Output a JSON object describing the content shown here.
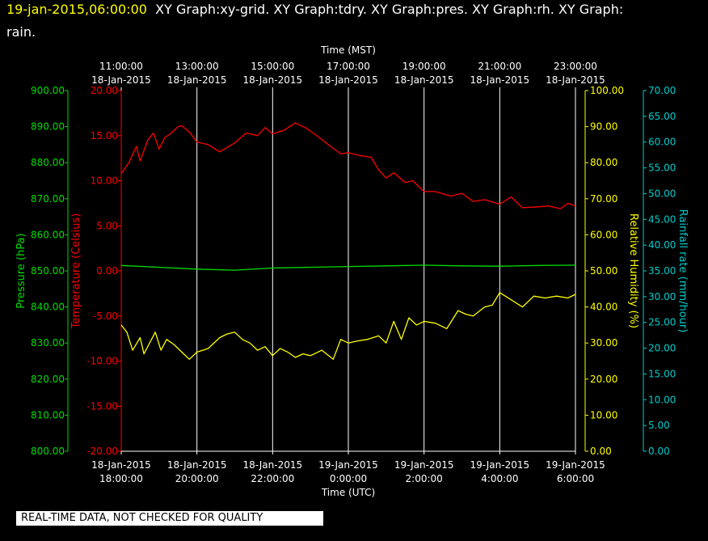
{
  "header": {
    "date": "19-jan-2015,06:00:00",
    "title_line1": "XY Graph:xy-grid.  XY Graph:tdry.  XY Graph:pres.  XY Graph:rh.  XY Graph:",
    "title_line2": "rain."
  },
  "disclaimer": "REAL-TIME DATA, NOT CHECKED FOR QUALITY",
  "colors": {
    "temperature": "#ff0000",
    "pressure": "#00dd00",
    "humidity": "#ffff00",
    "rain": "#00cccc",
    "grid": "#ffffff",
    "background": "#000000"
  },
  "chart_data": {
    "type": "line",
    "x_top_label": "Time (MST)",
    "x_bottom_label": "Time (UTC)",
    "x_top_ticks": [
      [
        "11:00:00",
        "18-Jan-2015"
      ],
      [
        "13:00:00",
        "18-Jan-2015"
      ],
      [
        "15:00:00",
        "18-Jan-2015"
      ],
      [
        "17:00:00",
        "18-Jan-2015"
      ],
      [
        "19:00:00",
        "18-Jan-2015"
      ],
      [
        "21:00:00",
        "18-Jan-2015"
      ],
      [
        "23:00:00",
        "18-Jan-2015"
      ]
    ],
    "x_bottom_ticks": [
      [
        "18-Jan-2015",
        "18:00:00"
      ],
      [
        "18-Jan-2015",
        "20:00:00"
      ],
      [
        "18-Jan-2015",
        "22:00:00"
      ],
      [
        "19-Jan-2015",
        "0:00:00"
      ],
      [
        "19-Jan-2015",
        "2:00:00"
      ],
      [
        "19-Jan-2015",
        "4:00:00"
      ],
      [
        "19-Jan-2015",
        "6:00:00"
      ]
    ],
    "x_range_utc_hours": [
      18,
      30
    ],
    "axes": {
      "pressure": {
        "label": "Pressure (hPa)",
        "range": [
          800,
          900
        ],
        "ticks": [
          "900.00",
          "890.00",
          "880.00",
          "870.00",
          "860.00",
          "850.00",
          "840.00",
          "830.00",
          "820.00",
          "810.00",
          "800.00"
        ]
      },
      "temperature": {
        "label": "Temperature (Celsius)",
        "range": [
          -20,
          20
        ],
        "ticks": [
          "20.00",
          "15.00",
          "10.00",
          "5.00",
          "0.00",
          "-5.00",
          "-10.00",
          "-15.00",
          "-20.00"
        ]
      },
      "humidity": {
        "label": "Relative Humidity (%)",
        "range": [
          0,
          100
        ],
        "ticks": [
          "100.00",
          "90.00",
          "80.00",
          "70.00",
          "60.00",
          "50.00",
          "40.00",
          "30.00",
          "20.00",
          "10.00",
          "0.00"
        ]
      },
      "rain": {
        "label": "Rainfall rate (mm/hour)",
        "range": [
          0,
          70
        ],
        "ticks": [
          "70.00",
          "65.00",
          "60.00",
          "55.00",
          "50.00",
          "45.00",
          "40.00",
          "35.00",
          "30.00",
          "25.00",
          "20.00",
          "15.00",
          "10.00",
          "5.00",
          "0.00"
        ]
      }
    },
    "series": [
      {
        "name": "tdry",
        "axis": "temperature",
        "x": [
          18.0,
          18.2,
          18.4,
          18.5,
          18.7,
          18.85,
          19.0,
          19.15,
          19.3,
          19.5,
          19.6,
          19.8,
          20.0,
          20.3,
          20.6,
          21.0,
          21.3,
          21.6,
          21.8,
          22.0,
          22.3,
          22.6,
          22.9,
          23.2,
          23.5,
          23.8,
          24.0,
          24.3,
          24.6,
          24.8,
          25.0,
          25.2,
          25.5,
          25.7,
          26.0,
          26.3,
          26.7,
          27.0,
          27.3,
          27.6,
          28.0,
          28.3,
          28.6,
          29.0,
          29.3,
          29.6,
          29.8,
          30.0
        ],
        "y": [
          10.8,
          12.0,
          13.8,
          12.2,
          14.5,
          15.3,
          13.5,
          14.8,
          15.2,
          16.0,
          16.1,
          15.4,
          14.3,
          14.0,
          13.2,
          14.2,
          15.3,
          15.0,
          15.9,
          15.2,
          15.6,
          16.4,
          15.8,
          14.9,
          13.9,
          13.0,
          13.1,
          12.8,
          12.6,
          11.2,
          10.3,
          10.9,
          9.8,
          10.0,
          8.8,
          8.8,
          8.3,
          8.6,
          7.7,
          7.9,
          7.4,
          8.2,
          7.0,
          7.1,
          7.2,
          6.9,
          7.5,
          7.2
        ]
      },
      {
        "name": "pres",
        "axis": "pressure",
        "x": [
          18.0,
          19.0,
          20.0,
          21.0,
          22.0,
          23.0,
          24.0,
          25.0,
          26.0,
          27.0,
          28.0,
          29.0,
          30.0
        ],
        "y": [
          851.5,
          851.0,
          850.5,
          850.2,
          850.8,
          851.0,
          851.2,
          851.4,
          851.6,
          851.4,
          851.3,
          851.5,
          851.6
        ]
      },
      {
        "name": "rh",
        "axis": "humidity",
        "x": [
          18.0,
          18.15,
          18.3,
          18.5,
          18.6,
          18.75,
          18.9,
          19.05,
          19.2,
          19.4,
          19.6,
          19.8,
          20.0,
          20.3,
          20.6,
          20.8,
          21.0,
          21.2,
          21.4,
          21.6,
          21.8,
          22.0,
          22.2,
          22.4,
          22.6,
          22.8,
          23.0,
          23.3,
          23.6,
          23.8,
          24.0,
          24.2,
          24.5,
          24.8,
          25.0,
          25.2,
          25.4,
          25.6,
          25.8,
          26.0,
          26.3,
          26.6,
          26.9,
          27.1,
          27.3,
          27.6,
          27.8,
          28.0,
          28.3,
          28.6,
          28.9,
          29.2,
          29.5,
          29.8,
          30.0
        ],
        "y": [
          35.0,
          33.0,
          28.0,
          31.5,
          27.0,
          30.0,
          33.0,
          28.0,
          31.0,
          29.5,
          27.5,
          25.5,
          27.5,
          28.5,
          31.5,
          32.5,
          33.0,
          31.0,
          30.0,
          28.0,
          29.0,
          26.5,
          28.5,
          27.5,
          26.0,
          27.0,
          26.5,
          28.0,
          25.5,
          31.0,
          30.0,
          30.5,
          31.0,
          32.0,
          30.0,
          36.0,
          31.0,
          37.0,
          35.0,
          36.0,
          35.5,
          34.0,
          39.0,
          38.0,
          37.5,
          40.0,
          40.5,
          44.0,
          42.0,
          40.0,
          43.0,
          42.5,
          43.0,
          42.5,
          43.5
        ]
      }
    ]
  }
}
